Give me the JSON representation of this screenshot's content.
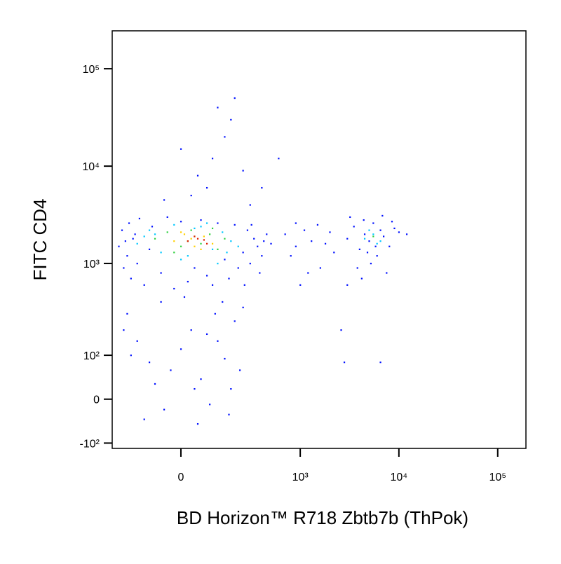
{
  "chart_data": {
    "type": "scatter",
    "x_label": "BD Horizon™ R718  Zbtb7b (ThPok)",
    "y_label": "FITC CD4",
    "xscale": "biexponential",
    "yscale": "biexponential",
    "xlim": [
      -296,
      193000
    ],
    "ylim": [
      -117,
      245000
    ],
    "xticks": [
      {
        "value": 0,
        "label": "0"
      },
      {
        "value": 1000,
        "label": "10³"
      },
      {
        "value": 10000,
        "label": "10⁴"
      },
      {
        "value": 100000,
        "label": "10⁵"
      }
    ],
    "yticks": [
      {
        "value": -100,
        "label": "-10²"
      },
      {
        "value": 0,
        "label": "0"
      },
      {
        "value": 100,
        "label": "10²"
      },
      {
        "value": 1000,
        "label": "10³"
      },
      {
        "value": 10000,
        "label": "10⁴"
      },
      {
        "value": 100000,
        "label": "10⁵"
      }
    ],
    "series": [
      {
        "color": "#0010ff",
        "x": [
          -250,
          -230,
          -220,
          -200,
          -190,
          -180,
          -170,
          -150,
          -140,
          -120,
          -100,
          -90,
          -60,
          -40,
          -20,
          0,
          20,
          40,
          60,
          80,
          100,
          120,
          150,
          170,
          200,
          220,
          250,
          280,
          300,
          330,
          360,
          400,
          450,
          500,
          380,
          260,
          -210,
          -160,
          310,
          420,
          -200,
          -150,
          -100,
          -80,
          -50,
          -30,
          0,
          30,
          60,
          90,
          120,
          150,
          180,
          200,
          230,
          -180,
          -120,
          50,
          110,
          140,
          -60,
          10,
          250,
          -220,
          170,
          80,
          40,
          50,
          100,
          150,
          120,
          200,
          30,
          80,
          300,
          250,
          -50,
          0,
          180,
          600,
          400,
          700,
          900,
          1100,
          1300,
          800,
          1500,
          1800,
          1200,
          1600,
          2000,
          1000,
          2200,
          900,
          3000,
          3500,
          4000,
          4500,
          5000,
          5500,
          6000,
          6500,
          7000,
          8000,
          9000,
          10000,
          12000,
          3800,
          4200,
          5200,
          7500,
          3200,
          6800,
          4800,
          5800,
          2600,
          6500,
          2800,
          3000,
          8500,
          4400
        ],
        "y": [
          1500,
          2200,
          900,
          1200,
          2600,
          700,
          1800,
          1000,
          2900,
          600,
          1400,
          2400,
          800,
          3000,
          550,
          2700,
          650,
          900,
          2800,
          750,
          600,
          2600,
          1100,
          700,
          2500,
          900,
          1300,
          2200,
          1000,
          1800,
          1500,
          1200,
          2000,
          1600,
          800,
          600,
          1700,
          2000,
          2500,
          1700,
          300,
          150,
          80,
          30,
          -20,
          60,
          120,
          200,
          40,
          -10,
          150,
          90,
          20,
          250,
          60,
          100,
          -40,
          -50,
          300,
          400,
          400,
          450,
          350,
          200,
          -30,
          180,
          20,
          8000,
          12000,
          20000,
          40000,
          50000,
          5000,
          6000,
          4000,
          9000,
          4500,
          15000,
          30000,
          12000,
          6000,
          2000,
          1500,
          2200,
          1700,
          1200,
          2500,
          1600,
          800,
          900,
          2100,
          600,
          1300,
          2600,
          1800,
          2400,
          1400,
          2000,
          1700,
          2600,
          1200,
          2200,
          1900,
          1500,
          2300,
          2100,
          2000,
          900,
          700,
          1000,
          800,
          3000,
          3100,
          1300,
          1500,
          200,
          80,
          80,
          600,
          2700,
          2800
        ]
      },
      {
        "color": "#00c8ff",
        "x": [
          -150,
          -100,
          -60,
          -20,
          20,
          60,
          100,
          140,
          180,
          220,
          -120,
          0,
          80,
          160,
          -80,
          40,
          120,
          4500,
          5500,
          6500,
          5000,
          6000
        ],
        "y": [
          1600,
          2200,
          1300,
          2500,
          1200,
          2400,
          1400,
          2100,
          1700,
          1500,
          1900,
          1100,
          2600,
          1300,
          2000,
          2300,
          1000,
          1800,
          2000,
          1700,
          2200,
          1600
        ]
      },
      {
        "color": "#30d040",
        "x": [
          -80,
          -40,
          0,
          30,
          60,
          90,
          120,
          150,
          -20,
          40,
          100,
          20,
          5500
        ],
        "y": [
          1800,
          2100,
          1500,
          2200,
          1600,
          2000,
          1400,
          1800,
          1300,
          1900,
          2300,
          1700,
          1900
        ]
      },
      {
        "color": "#ffd000",
        "x": [
          -20,
          10,
          40,
          70,
          100,
          30,
          60,
          0
        ],
        "y": [
          1700,
          2000,
          1500,
          1900,
          1600,
          1800,
          1400,
          2100
        ]
      },
      {
        "color": "#e02000",
        "x": [
          20,
          50,
          80,
          40,
          70
        ],
        "y": [
          1700,
          1800,
          1600,
          1900,
          1750
        ]
      }
    ]
  }
}
